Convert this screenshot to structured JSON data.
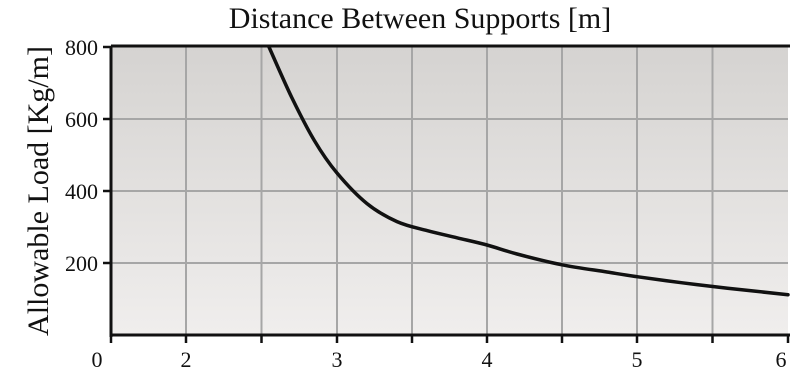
{
  "chart_data": {
    "type": "line",
    "title": "Distance Between Supports [m]",
    "xlabel": "Distance Between Supports [m]",
    "ylabel": "Allowable  Load  [Kg/m]",
    "x_tick_labels": [
      "0",
      "2",
      "3",
      "4",
      "5",
      "6"
    ],
    "x_tick_values": [
      0,
      2,
      3,
      4,
      5,
      6
    ],
    "y_tick_labels": [
      "200",
      "400",
      "600",
      "800"
    ],
    "y_tick_values": [
      200,
      400,
      600,
      800
    ],
    "ylim": [
      0,
      800
    ],
    "grid": true,
    "legend": "none",
    "series": [
      {
        "x": [
          2.55,
          2.7,
          2.85,
          3.0,
          3.2,
          3.4,
          3.6,
          3.8,
          4.0,
          4.2,
          4.5,
          4.8,
          5.0,
          5.3,
          5.6,
          6.0
        ],
        "y": [
          800,
          660,
          540,
          450,
          365,
          315,
          290,
          270,
          250,
          225,
          195,
          175,
          162,
          145,
          130,
          112
        ]
      }
    ],
    "colors": {
      "line": "#111111",
      "grid": "#a6a6a6",
      "axis": "#111111",
      "plot_bg_top": "#d5d3d1",
      "plot_bg_bottom": "#f0eeed"
    }
  }
}
